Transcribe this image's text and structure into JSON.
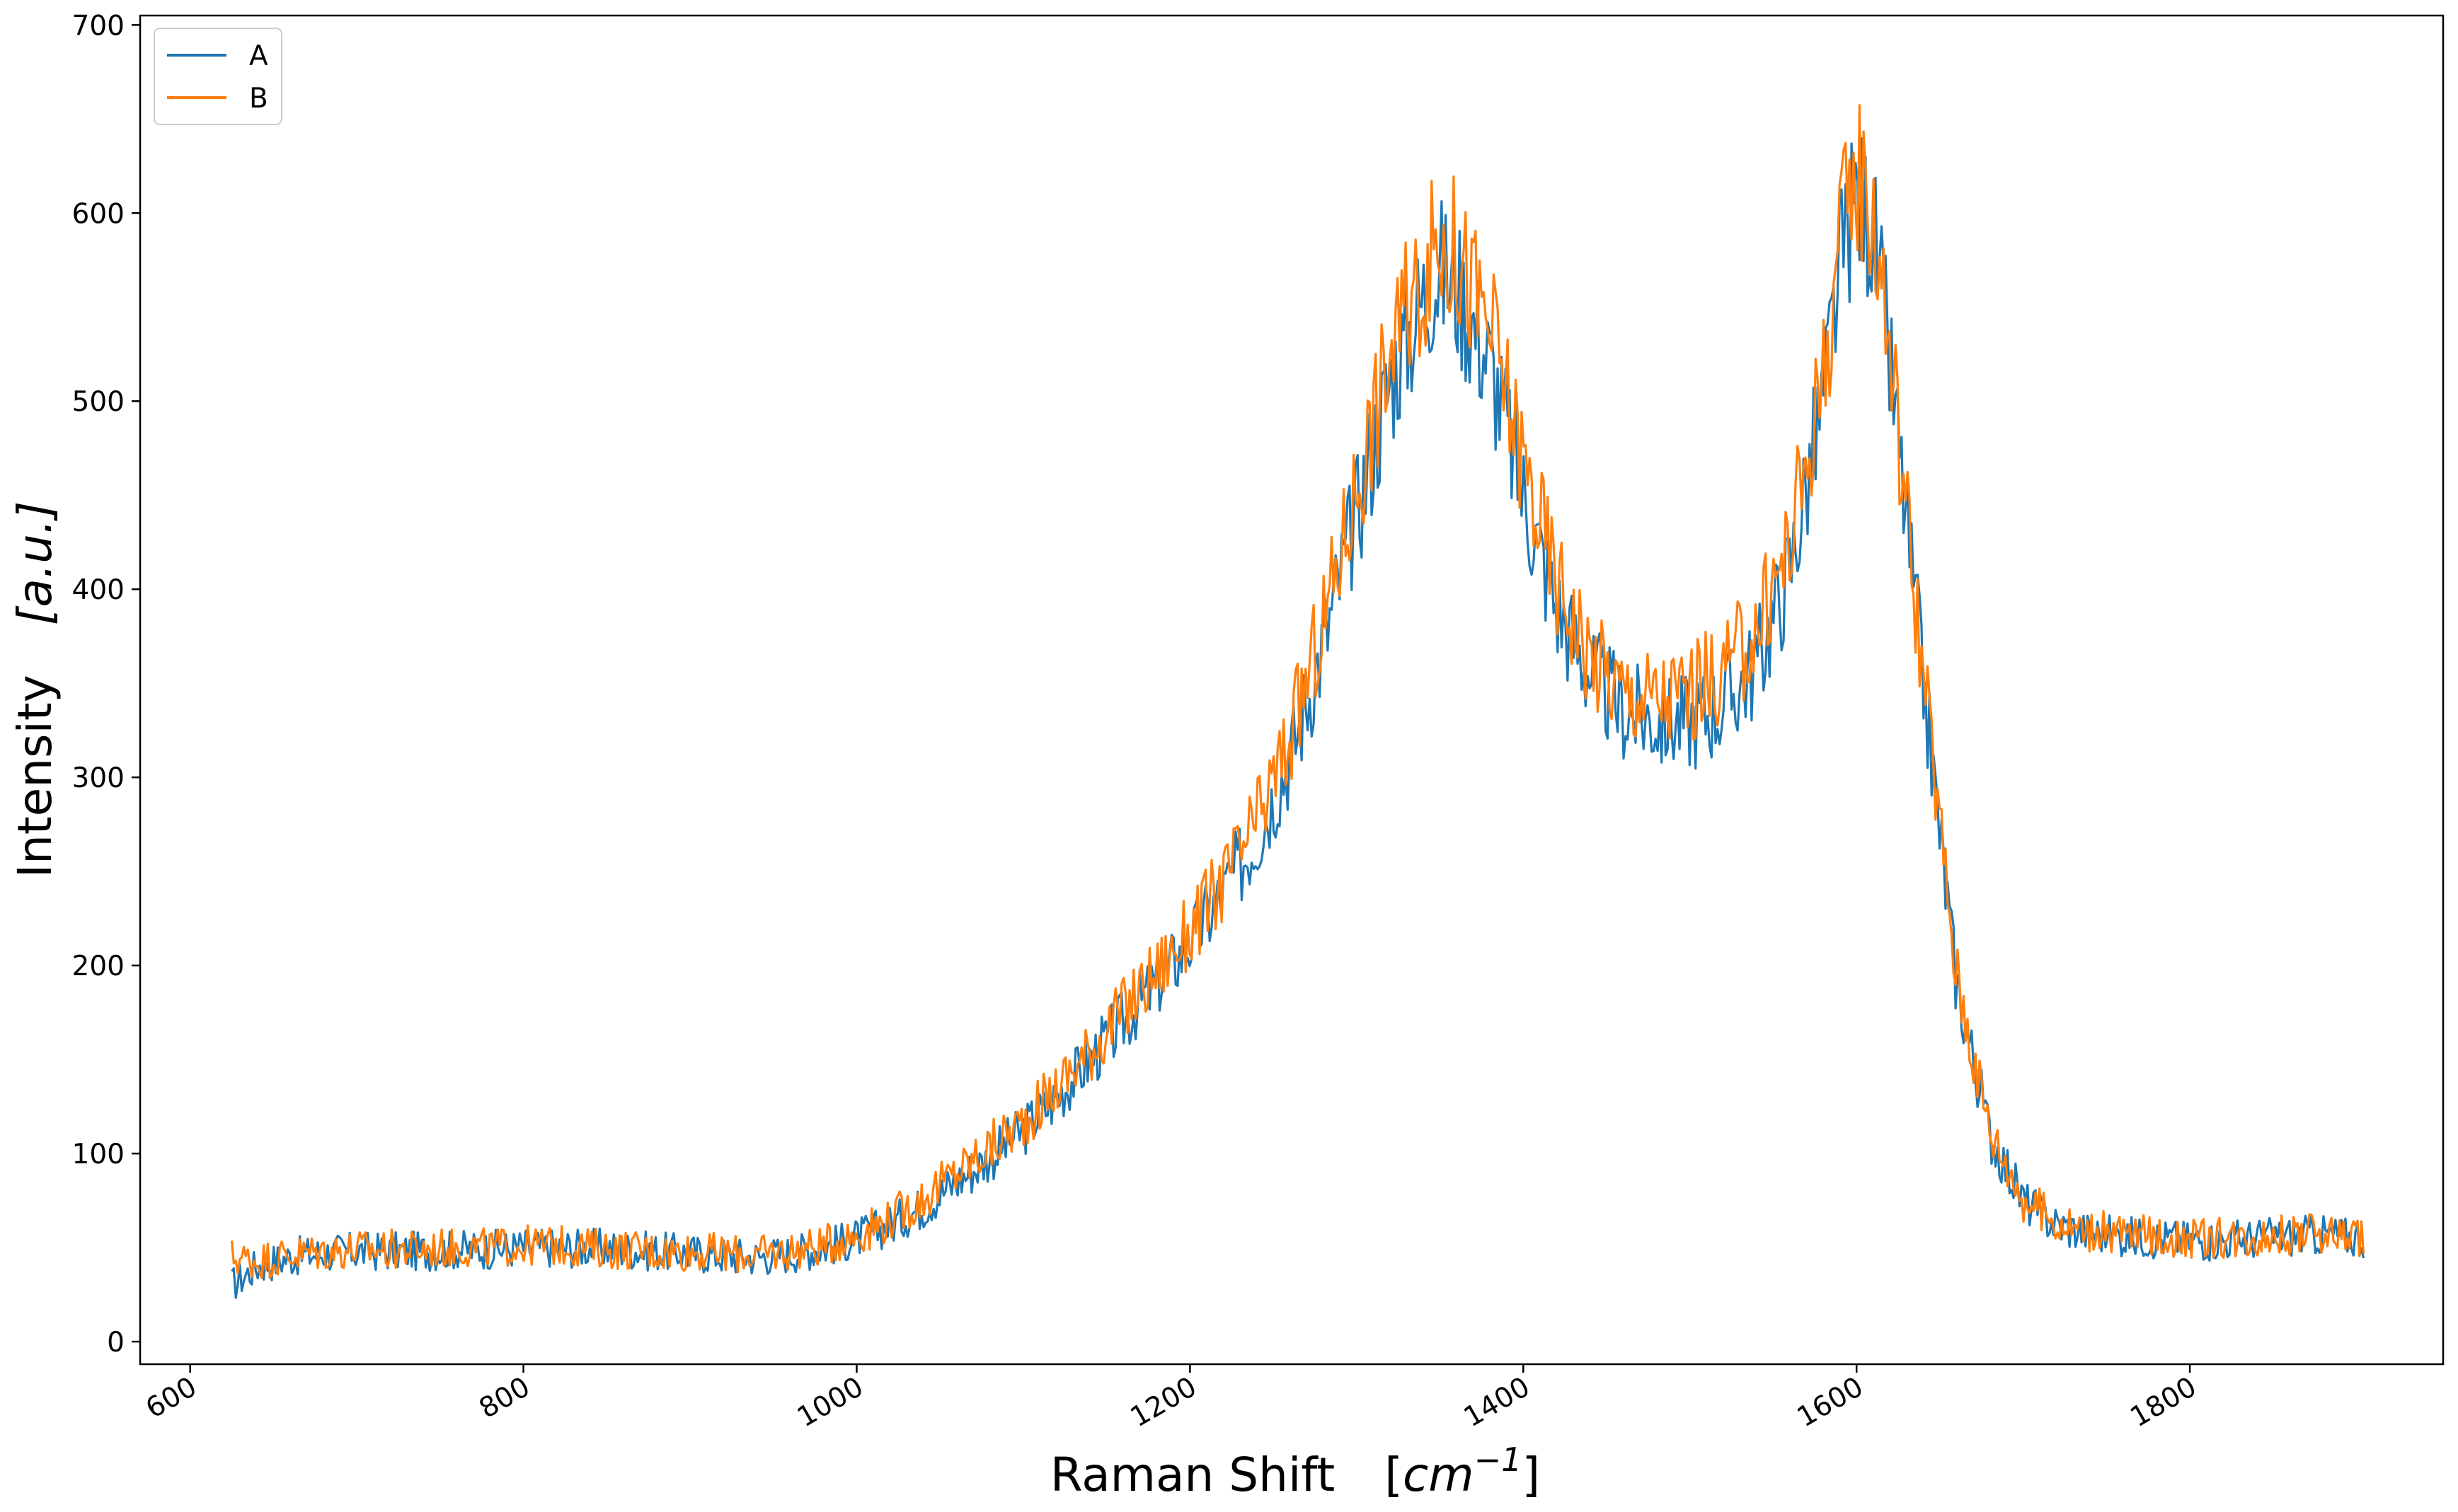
{
  "chart_data": {
    "type": "line",
    "title": "",
    "xlabel_main": "Raman Shift",
    "xlabel_unit_open": "[",
    "xlabel_unit_base": "cm",
    "xlabel_unit_exp": "−1",
    "xlabel_unit_close": "]",
    "ylabel_main": "Intensity",
    "ylabel_unit": "[a.u.]",
    "xlim": [
      570,
      1952
    ],
    "ylim": [
      -12,
      705
    ],
    "xticks": [
      600,
      800,
      1000,
      1200,
      1400,
      1600,
      1800
    ],
    "xtick_labels": [
      "600",
      "800",
      "1000",
      "1200",
      "1400",
      "1600",
      "1800"
    ],
    "yticks": [
      0,
      100,
      200,
      300,
      400,
      500,
      600,
      700
    ],
    "ytick_labels": [
      "0",
      "100",
      "200",
      "300",
      "400",
      "500",
      "600",
      "700"
    ],
    "grid": false,
    "legend_position": "upper-left",
    "series": [
      {
        "name": "A",
        "color": "#1f77b4",
        "x": [
          625,
          640,
          660,
          680,
          700,
          720,
          740,
          760,
          780,
          800,
          820,
          840,
          860,
          880,
          900,
          920,
          940,
          960,
          980,
          1000,
          1020,
          1040,
          1060,
          1080,
          1100,
          1120,
          1140,
          1160,
          1180,
          1200,
          1220,
          1240,
          1260,
          1280,
          1300,
          1320,
          1340,
          1350,
          1360,
          1380,
          1400,
          1420,
          1440,
          1460,
          1480,
          1500,
          1520,
          1540,
          1560,
          1580,
          1590,
          1600,
          1610,
          1620,
          1640,
          1660,
          1680,
          1700,
          1720,
          1740,
          1760,
          1780,
          1800,
          1820,
          1840,
          1860,
          1880,
          1905
        ],
        "y": [
          30,
          40,
          45,
          47,
          48,
          48,
          48,
          49,
          49,
          50,
          50,
          50,
          49,
          48,
          47,
          46,
          45,
          47,
          50,
          55,
          62,
          72,
          85,
          98,
          112,
          130,
          150,
          170,
          190,
          212,
          238,
          268,
          310,
          370,
          440,
          510,
          555,
          570,
          560,
          520,
          450,
          390,
          355,
          335,
          330,
          330,
          338,
          360,
          410,
          500,
          570,
          610,
          590,
          520,
          350,
          190,
          110,
          75,
          62,
          58,
          56,
          55,
          54,
          54,
          55,
          56,
          57,
          55
        ]
      },
      {
        "name": "B",
        "color": "#ff7f0e",
        "x": [
          625,
          640,
          660,
          680,
          700,
          720,
          740,
          760,
          780,
          800,
          820,
          840,
          860,
          880,
          900,
          920,
          940,
          960,
          980,
          1000,
          1020,
          1040,
          1060,
          1080,
          1100,
          1120,
          1140,
          1160,
          1180,
          1200,
          1220,
          1240,
          1260,
          1280,
          1300,
          1320,
          1340,
          1350,
          1360,
          1380,
          1400,
          1420,
          1440,
          1460,
          1480,
          1500,
          1520,
          1540,
          1560,
          1580,
          1590,
          1600,
          1610,
          1620,
          1640,
          1660,
          1680,
          1700,
          1720,
          1740,
          1760,
          1780,
          1800,
          1820,
          1840,
          1860,
          1880,
          1905
        ],
        "y": [
          45,
          43,
          46,
          48,
          49,
          49,
          49,
          50,
          50,
          51,
          51,
          50,
          49,
          48,
          48,
          47,
          46,
          48,
          51,
          57,
          65,
          76,
          90,
          103,
          117,
          135,
          155,
          176,
          197,
          218,
          244,
          275,
          320,
          382,
          455,
          525,
          568,
          585,
          578,
          540,
          468,
          405,
          365,
          345,
          342,
          345,
          355,
          378,
          425,
          515,
          585,
          625,
          600,
          530,
          355,
          195,
          112,
          76,
          63,
          59,
          57,
          56,
          55,
          55,
          56,
          57,
          58,
          56
        ]
      }
    ]
  }
}
